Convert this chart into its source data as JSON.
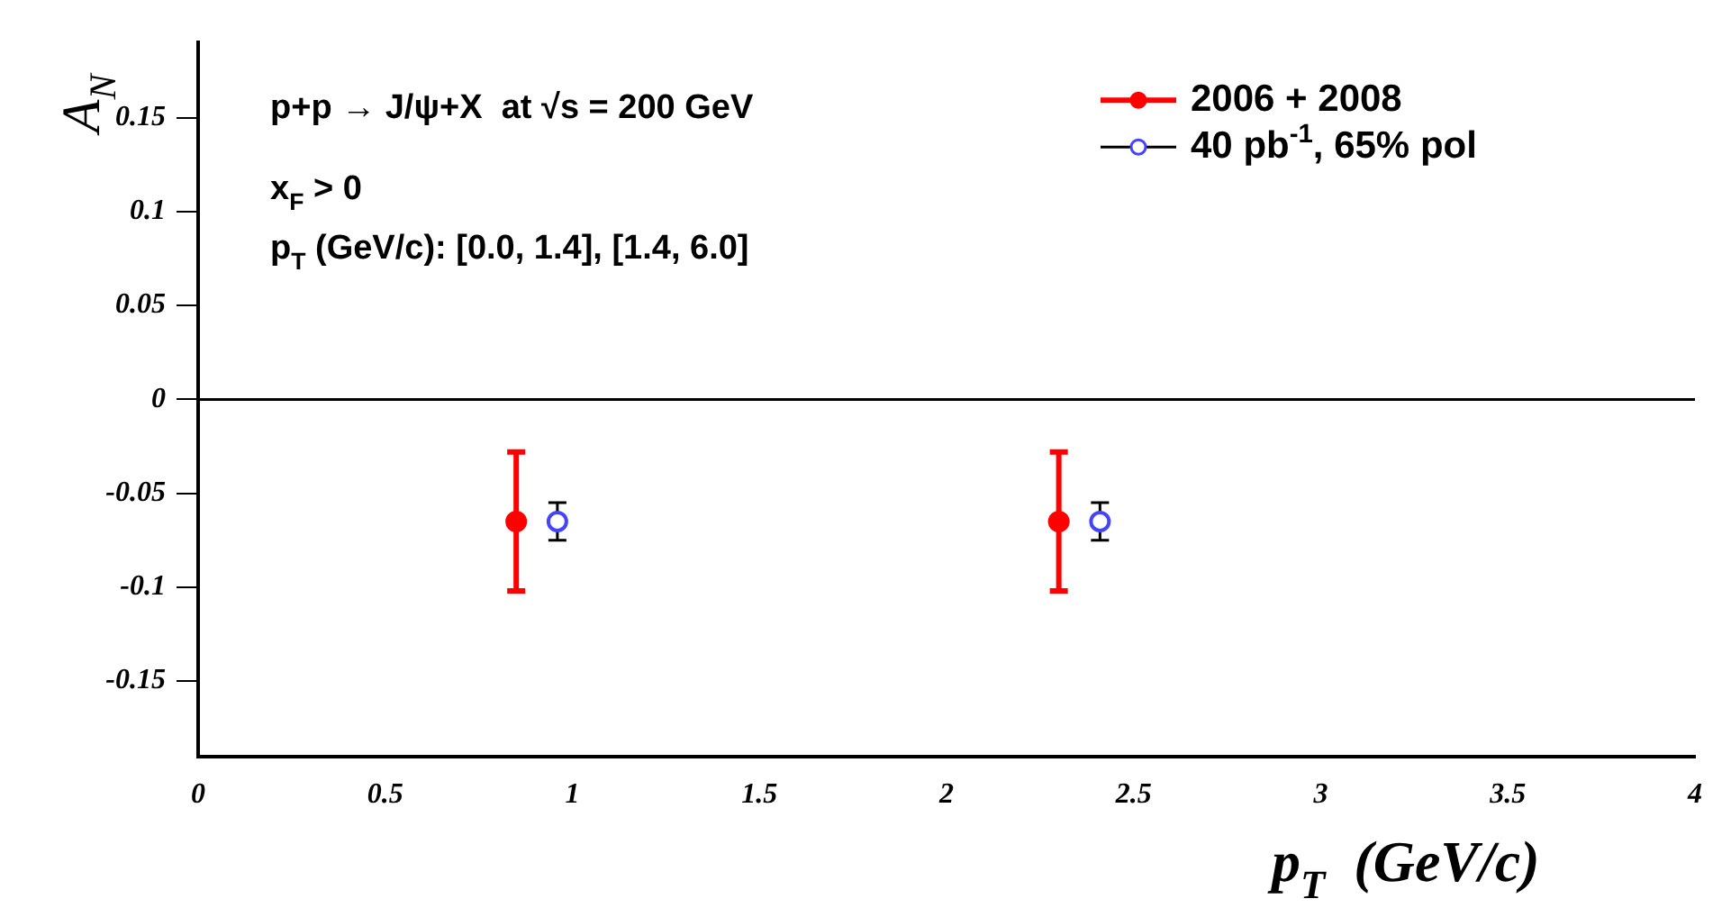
{
  "chart_data": {
    "type": "scatter",
    "xlabel": "p$_{T}$  (GeV/c)",
    "ylabel": "A$_{N}$",
    "annotations": [
      "p+p → J/ψ+X  at √s = 200 GeV",
      "x$_{F}$ > 0",
      "p$_{T}$ (GeV/c): [0.0, 1.4], [1.4, 6.0]"
    ],
    "series": [
      {
        "name": "2006 + 2008",
        "color": "#ff0000",
        "x": [
          0.85,
          2.3
        ],
        "values": [
          -0.065,
          -0.065
        ],
        "errors": [
          0.037,
          0.037
        ]
      },
      {
        "name": "40 pb$^{-1}$, 65% pol",
        "color": "#4444ff",
        "x": [
          0.96,
          2.41
        ],
        "values": [
          -0.065,
          -0.065
        ],
        "errors": [
          0.01,
          0.01
        ]
      }
    ],
    "xlim": [
      0,
      4
    ],
    "xticks": [
      0,
      0.5,
      1,
      1.5,
      2,
      2.5,
      3,
      3.5,
      4
    ],
    "ylim": [
      -0.19,
      0.19
    ],
    "yticks": [
      -0.15,
      -0.1,
      -0.05,
      0,
      0.05,
      0.1,
      0.15
    ],
    "ref_lines": [
      {
        "axis": "y",
        "value": 0,
        "color": "#000000"
      }
    ],
    "grid": false,
    "legend": "top right",
    "marker": "circle"
  }
}
